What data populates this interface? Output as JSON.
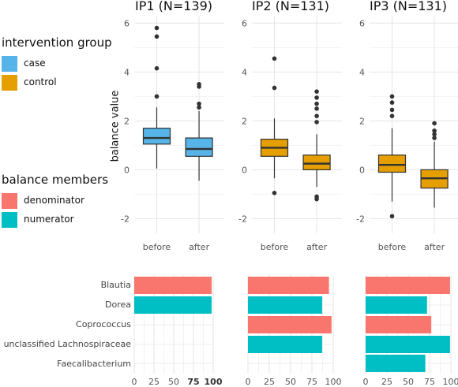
{
  "chart_data": [
    {
      "type": "box",
      "ylabel": "balance value",
      "ylim": [
        -2.6,
        6.3
      ],
      "yticks": [
        "-2",
        "0",
        "2",
        "4",
        "6"
      ],
      "categories": [
        "before",
        "after"
      ],
      "panels": [
        {
          "title": "IP1 (N=139)",
          "group": "case",
          "boxes": [
            {
              "x": "before",
              "q1": 1.05,
              "median": 1.3,
              "q3": 1.7,
              "whisker_low": 0.05,
              "whisker_high": 2.55,
              "outliers": [
                3.0,
                4.15,
                5.45,
                5.8
              ]
            },
            {
              "x": "after",
              "q1": 0.55,
              "median": 0.85,
              "q3": 1.3,
              "whisker_low": -0.45,
              "whisker_high": 2.4,
              "outliers": [
                2.55,
                2.7,
                3.4,
                3.5
              ]
            }
          ]
        },
        {
          "title": "IP2 (N=131)",
          "group": "control",
          "boxes": [
            {
              "x": "before",
              "q1": 0.55,
              "median": 0.9,
              "q3": 1.25,
              "whisker_low": -0.35,
              "whisker_high": 2.1,
              "outliers": [
                -0.95,
                3.35,
                4.55
              ]
            },
            {
              "x": "after",
              "q1": 0.0,
              "median": 0.25,
              "q3": 0.6,
              "whisker_low": -0.7,
              "whisker_high": 1.45,
              "outliers": [
                -1.1,
                -1.2,
                1.95,
                2.2,
                2.5,
                2.7,
                2.95,
                3.2
              ]
            }
          ]
        },
        {
          "title": "IP3 (N=131)",
          "group": "control",
          "boxes": [
            {
              "x": "before",
              "q1": -0.1,
              "median": 0.2,
              "q3": 0.6,
              "whisker_low": -1.3,
              "whisker_high": 1.7,
              "outliers": [
                -1.9,
                2.2,
                2.45,
                2.75,
                3.0
              ]
            },
            {
              "x": "after",
              "q1": -0.75,
              "median": -0.35,
              "q3": 0.0,
              "whisker_low": -1.55,
              "whisker_high": 1.15,
              "outliers": [
                1.3,
                1.45,
                1.6,
                1.9
              ]
            }
          ]
        }
      ]
    },
    {
      "type": "bar",
      "orientation": "horizontal",
      "categories": [
        "Blautia",
        "Dorea",
        "Coprococcus",
        "unclassified Lachnospiraceae",
        "Faecalibacterium"
      ],
      "xticks": [
        "0",
        "25",
        "50",
        "75",
        "100"
      ],
      "xlim": [
        0,
        100
      ],
      "panels": [
        {
          "values": [
            98,
            98,
            null,
            null,
            null
          ],
          "members": [
            "denominator",
            "numerator",
            null,
            null,
            null
          ]
        },
        {
          "values": [
            95,
            87,
            98,
            87,
            null
          ],
          "members": [
            "denominator",
            "numerator",
            "denominator",
            "numerator",
            null
          ]
        },
        {
          "values": [
            99,
            72,
            77,
            99,
            70
          ],
          "members": [
            "denominator",
            "numerator",
            "denominator",
            "numerator",
            "numerator"
          ]
        }
      ]
    }
  ],
  "legend": {
    "intervention": {
      "title": "intervention group",
      "items": [
        {
          "label": "case",
          "color": "#56B4E9"
        },
        {
          "label": "control",
          "color": "#E69F00"
        }
      ]
    },
    "members": {
      "title": "balance members",
      "items": [
        {
          "label": "denominator",
          "color": "#F8766D"
        },
        {
          "label": "numerator",
          "color": "#00BFC4"
        }
      ]
    }
  }
}
